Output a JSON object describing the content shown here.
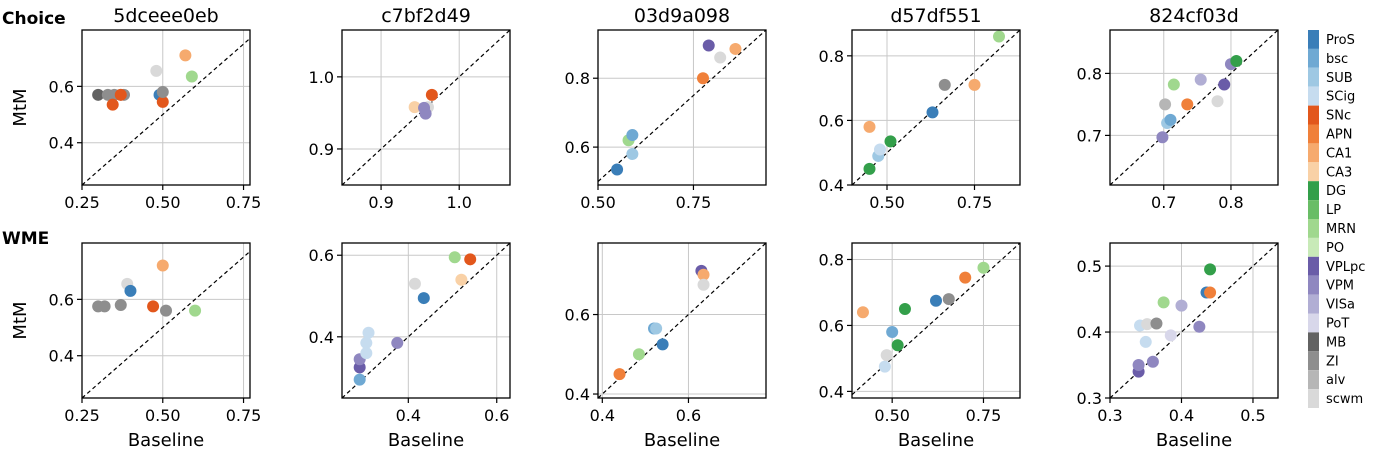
{
  "chart_data": {
    "type": "scatter",
    "x_axis_label": "Baseline",
    "y_axis_label": "MtM",
    "rows": [
      {
        "label": "Choice",
        "y_label": "MtM"
      },
      {
        "label": "WME",
        "y_label": "MtM"
      }
    ],
    "session_titles": [
      "5dceee0eb",
      "c7bf2d49",
      "03d9a098",
      "d57df551",
      "824cf03d"
    ],
    "legend": [
      {
        "name": "ProS",
        "color": "#3a7eb8"
      },
      {
        "name": "bsc",
        "color": "#6fa9d3"
      },
      {
        "name": "SUB",
        "color": "#9ec8e3"
      },
      {
        "name": "SCig",
        "color": "#c6dcef"
      },
      {
        "name": "SNc",
        "color": "#e2571c"
      },
      {
        "name": "APN",
        "color": "#f0803a"
      },
      {
        "name": "CA1",
        "color": "#f6aa6e"
      },
      {
        "name": "CA3",
        "color": "#f9d1a6"
      },
      {
        "name": "DG",
        "color": "#339f4a"
      },
      {
        "name": "LP",
        "color": "#69bd66"
      },
      {
        "name": "MRN",
        "color": "#a0d88e"
      },
      {
        "name": "PO",
        "color": "#c8eab8"
      },
      {
        "name": "VPLpc",
        "color": "#6a5ca8"
      },
      {
        "name": "VPM",
        "color": "#8f87c0"
      },
      {
        "name": "VISa",
        "color": "#b1aed4"
      },
      {
        "name": "PoT",
        "color": "#d8d7ea"
      },
      {
        "name": "MB",
        "color": "#626262"
      },
      {
        "name": "ZI",
        "color": "#8e8e8e"
      },
      {
        "name": "alv",
        "color": "#b6b6b6"
      },
      {
        "name": "scwm",
        "color": "#d9d9d9"
      }
    ],
    "panels": [
      {
        "row": 0,
        "col": 0,
        "xlim": [
          0.25,
          0.77
        ],
        "ylim": [
          0.25,
          0.8
        ],
        "xticks": [
          0.25,
          0.5,
          0.75
        ],
        "xticklabels": [
          "0.25",
          "0.50",
          "0.75"
        ],
        "yticks": [
          0.4,
          0.6
        ],
        "yticklabels": [
          "0.4",
          "0.6"
        ],
        "points": [
          {
            "x": 0.3,
            "y": 0.57,
            "color": "#626262"
          },
          {
            "x": 0.33,
            "y": 0.57,
            "color": "#8e8e8e"
          },
          {
            "x": 0.35,
            "y": 0.57,
            "color": "#8e8e8e"
          },
          {
            "x": 0.37,
            "y": 0.57,
            "color": "#8e8e8e"
          },
          {
            "x": 0.38,
            "y": 0.57,
            "color": "#8e8e8e"
          },
          {
            "x": 0.345,
            "y": 0.535,
            "color": "#e2571c"
          },
          {
            "x": 0.37,
            "y": 0.57,
            "color": "#e2571c"
          },
          {
            "x": 0.48,
            "y": 0.655,
            "color": "#d9d9d9"
          },
          {
            "x": 0.49,
            "y": 0.57,
            "color": "#3a7eb8"
          },
          {
            "x": 0.5,
            "y": 0.545,
            "color": "#e2571c"
          },
          {
            "x": 0.5,
            "y": 0.58,
            "color": "#8e8e8e"
          },
          {
            "x": 0.57,
            "y": 0.71,
            "color": "#f6aa6e"
          },
          {
            "x": 0.59,
            "y": 0.635,
            "color": "#a0d88e"
          }
        ]
      },
      {
        "row": 0,
        "col": 1,
        "xlim": [
          0.85,
          1.065
        ],
        "ylim": [
          0.85,
          1.065
        ],
        "xticks": [
          0.9,
          1.0
        ],
        "xticklabels": [
          "0.9",
          "1.0"
        ],
        "yticks": [
          0.9,
          1.0
        ],
        "yticklabels": [
          "0.9",
          "1.0"
        ],
        "points": [
          {
            "x": 0.943,
            "y": 0.958,
            "color": "#f9d1a6"
          },
          {
            "x": 0.965,
            "y": 0.975,
            "color": "#e2571c"
          },
          {
            "x": 0.96,
            "y": 0.958,
            "color": "#d9d9d9"
          },
          {
            "x": 0.955,
            "y": 0.957,
            "color": "#8f87c0"
          },
          {
            "x": 0.957,
            "y": 0.949,
            "color": "#8f87c0"
          }
        ]
      },
      {
        "row": 0,
        "col": 2,
        "xlim": [
          0.5,
          0.94
        ],
        "ylim": [
          0.49,
          0.94
        ],
        "xticks": [
          0.5,
          0.75
        ],
        "xticklabels": [
          "0.50",
          "0.75"
        ],
        "yticks": [
          0.6,
          0.8
        ],
        "yticklabels": [
          "0.6",
          "0.8"
        ],
        "points": [
          {
            "x": 0.55,
            "y": 0.535,
            "color": "#3a7eb8"
          },
          {
            "x": 0.58,
            "y": 0.62,
            "color": "#a0d88e"
          },
          {
            "x": 0.59,
            "y": 0.635,
            "color": "#6fa9d3"
          },
          {
            "x": 0.59,
            "y": 0.58,
            "color": "#9ec8e3"
          },
          {
            "x": 0.775,
            "y": 0.8,
            "color": "#f0803a"
          },
          {
            "x": 0.79,
            "y": 0.895,
            "color": "#6a5ca8"
          },
          {
            "x": 0.82,
            "y": 0.86,
            "color": "#d9d9d9"
          },
          {
            "x": 0.86,
            "y": 0.885,
            "color": "#f6aa6e"
          }
        ]
      },
      {
        "row": 0,
        "col": 3,
        "xlim": [
          0.4,
          0.88
        ],
        "ylim": [
          0.4,
          0.88
        ],
        "xticks": [
          0.5,
          0.75
        ],
        "xticklabels": [
          "0.50",
          "0.75"
        ],
        "yticks": [
          0.4,
          0.6,
          0.8
        ],
        "yticklabels": [
          "0.4",
          "0.6",
          "0.8"
        ],
        "points": [
          {
            "x": 0.45,
            "y": 0.45,
            "color": "#339f4a"
          },
          {
            "x": 0.45,
            "y": 0.58,
            "color": "#f6aa6e"
          },
          {
            "x": 0.475,
            "y": 0.49,
            "color": "#9ec8e3"
          },
          {
            "x": 0.48,
            "y": 0.51,
            "color": "#c6dcef"
          },
          {
            "x": 0.51,
            "y": 0.535,
            "color": "#339f4a"
          },
          {
            "x": 0.63,
            "y": 0.625,
            "color": "#3a7eb8"
          },
          {
            "x": 0.665,
            "y": 0.71,
            "color": "#8e8e8e"
          },
          {
            "x": 0.75,
            "y": 0.71,
            "color": "#f6aa6e"
          },
          {
            "x": 0.82,
            "y": 0.86,
            "color": "#a0d88e"
          }
        ]
      },
      {
        "row": 0,
        "col": 4,
        "xlim": [
          0.62,
          0.87
        ],
        "ylim": [
          0.62,
          0.87
        ],
        "xticks": [
          0.7,
          0.8
        ],
        "xticklabels": [
          "0.7",
          "0.8"
        ],
        "yticks": [
          0.7,
          0.8
        ],
        "yticklabels": [
          "0.7",
          "0.8"
        ],
        "points": [
          {
            "x": 0.698,
            "y": 0.697,
            "color": "#8f87c0"
          },
          {
            "x": 0.702,
            "y": 0.75,
            "color": "#b6b6b6"
          },
          {
            "x": 0.705,
            "y": 0.72,
            "color": "#9ec8e3"
          },
          {
            "x": 0.71,
            "y": 0.725,
            "color": "#6fa9d3"
          },
          {
            "x": 0.715,
            "y": 0.782,
            "color": "#a0d88e"
          },
          {
            "x": 0.735,
            "y": 0.75,
            "color": "#f0803a"
          },
          {
            "x": 0.755,
            "y": 0.79,
            "color": "#b1aed4"
          },
          {
            "x": 0.78,
            "y": 0.755,
            "color": "#d9d9d9"
          },
          {
            "x": 0.79,
            "y": 0.782,
            "color": "#6a5ca8"
          },
          {
            "x": 0.8,
            "y": 0.815,
            "color": "#8f87c0"
          },
          {
            "x": 0.808,
            "y": 0.82,
            "color": "#339f4a"
          }
        ]
      },
      {
        "row": 1,
        "col": 0,
        "xlim": [
          0.25,
          0.77
        ],
        "ylim": [
          0.25,
          0.8
        ],
        "xticks": [
          0.25,
          0.5,
          0.75
        ],
        "xticklabels": [
          "0.25",
          "0.50",
          "0.75"
        ],
        "yticks": [
          0.4,
          0.6
        ],
        "yticklabels": [
          "0.4",
          "0.6"
        ],
        "points": [
          {
            "x": 0.3,
            "y": 0.575,
            "color": "#8e8e8e"
          },
          {
            "x": 0.32,
            "y": 0.575,
            "color": "#8e8e8e"
          },
          {
            "x": 0.37,
            "y": 0.58,
            "color": "#8e8e8e"
          },
          {
            "x": 0.39,
            "y": 0.655,
            "color": "#d9d9d9"
          },
          {
            "x": 0.4,
            "y": 0.63,
            "color": "#3a7eb8"
          },
          {
            "x": 0.47,
            "y": 0.575,
            "color": "#e2571c"
          },
          {
            "x": 0.5,
            "y": 0.72,
            "color": "#f6aa6e"
          },
          {
            "x": 0.51,
            "y": 0.56,
            "color": "#8e8e8e"
          },
          {
            "x": 0.6,
            "y": 0.56,
            "color": "#a0d88e"
          }
        ]
      },
      {
        "row": 1,
        "col": 1,
        "xlim": [
          0.25,
          0.63
        ],
        "ylim": [
          0.25,
          0.63
        ],
        "xticks": [
          0.4,
          0.6
        ],
        "xticklabels": [
          "0.4",
          "0.6"
        ],
        "yticks": [
          0.4,
          0.6
        ],
        "yticklabels": [
          "0.4",
          "0.6"
        ],
        "points": [
          {
            "x": 0.29,
            "y": 0.295,
            "color": "#6fa9d3"
          },
          {
            "x": 0.29,
            "y": 0.325,
            "color": "#6a5ca8"
          },
          {
            "x": 0.29,
            "y": 0.345,
            "color": "#8f87c0"
          },
          {
            "x": 0.305,
            "y": 0.36,
            "color": "#c6dcef"
          },
          {
            "x": 0.305,
            "y": 0.385,
            "color": "#c6dcef"
          },
          {
            "x": 0.31,
            "y": 0.41,
            "color": "#c6dcef"
          },
          {
            "x": 0.375,
            "y": 0.385,
            "color": "#8f87c0"
          },
          {
            "x": 0.415,
            "y": 0.53,
            "color": "#d9d9d9"
          },
          {
            "x": 0.435,
            "y": 0.495,
            "color": "#3a7eb8"
          },
          {
            "x": 0.505,
            "y": 0.595,
            "color": "#a0d88e"
          },
          {
            "x": 0.52,
            "y": 0.54,
            "color": "#f9d1a6"
          },
          {
            "x": 0.54,
            "y": 0.59,
            "color": "#e2571c"
          }
        ]
      },
      {
        "row": 1,
        "col": 2,
        "xlim": [
          0.39,
          0.78
        ],
        "ylim": [
          0.39,
          0.78
        ],
        "xticks": [
          0.4,
          0.6
        ],
        "xticklabels": [
          "0.4",
          "0.6"
        ],
        "yticks": [
          0.4,
          0.6
        ],
        "yticklabels": [
          "0.4",
          "0.6"
        ],
        "points": [
          {
            "x": 0.44,
            "y": 0.45,
            "color": "#f0803a"
          },
          {
            "x": 0.485,
            "y": 0.5,
            "color": "#a0d88e"
          },
          {
            "x": 0.52,
            "y": 0.565,
            "color": "#6fa9d3"
          },
          {
            "x": 0.525,
            "y": 0.565,
            "color": "#9ec8e3"
          },
          {
            "x": 0.54,
            "y": 0.525,
            "color": "#3a7eb8"
          },
          {
            "x": 0.63,
            "y": 0.71,
            "color": "#6a5ca8"
          },
          {
            "x": 0.635,
            "y": 0.7,
            "color": "#f6aa6e"
          },
          {
            "x": 0.635,
            "y": 0.675,
            "color": "#d9d9d9"
          }
        ]
      },
      {
        "row": 1,
        "col": 3,
        "xlim": [
          0.39,
          0.85
        ],
        "ylim": [
          0.38,
          0.85
        ],
        "xticks": [
          0.5,
          0.75
        ],
        "xticklabels": [
          "0.50",
          "0.75"
        ],
        "yticks": [
          0.4,
          0.6,
          0.8
        ],
        "yticklabels": [
          "0.4",
          "0.6",
          "0.8"
        ],
        "points": [
          {
            "x": 0.42,
            "y": 0.64,
            "color": "#f6aa6e"
          },
          {
            "x": 0.48,
            "y": 0.475,
            "color": "#c6dcef"
          },
          {
            "x": 0.485,
            "y": 0.51,
            "color": "#d9d9d9"
          },
          {
            "x": 0.5,
            "y": 0.58,
            "color": "#6fa9d3"
          },
          {
            "x": 0.515,
            "y": 0.54,
            "color": "#339f4a"
          },
          {
            "x": 0.535,
            "y": 0.65,
            "color": "#339f4a"
          },
          {
            "x": 0.62,
            "y": 0.675,
            "color": "#3a7eb8"
          },
          {
            "x": 0.655,
            "y": 0.68,
            "color": "#8e8e8e"
          },
          {
            "x": 0.7,
            "y": 0.745,
            "color": "#f0803a"
          },
          {
            "x": 0.75,
            "y": 0.775,
            "color": "#a0d88e"
          }
        ]
      },
      {
        "row": 1,
        "col": 4,
        "xlim": [
          0.3,
          0.535
        ],
        "ylim": [
          0.3,
          0.535
        ],
        "xticks": [
          0.3,
          0.4,
          0.5
        ],
        "xticklabels": [
          "0.3",
          "0.4",
          "0.5"
        ],
        "yticks": [
          0.3,
          0.4,
          0.5
        ],
        "yticklabels": [
          "0.3",
          "0.4",
          "0.5"
        ],
        "points": [
          {
            "x": 0.34,
            "y": 0.34,
            "color": "#6a5ca8"
          },
          {
            "x": 0.34,
            "y": 0.35,
            "color": "#8f87c0"
          },
          {
            "x": 0.342,
            "y": 0.41,
            "color": "#c6dcef"
          },
          {
            "x": 0.35,
            "y": 0.385,
            "color": "#c6dcef"
          },
          {
            "x": 0.352,
            "y": 0.412,
            "color": "#d9d9d9"
          },
          {
            "x": 0.36,
            "y": 0.355,
            "color": "#8f87c0"
          },
          {
            "x": 0.365,
            "y": 0.413,
            "color": "#8e8e8e"
          },
          {
            "x": 0.375,
            "y": 0.445,
            "color": "#a0d88e"
          },
          {
            "x": 0.385,
            "y": 0.395,
            "color": "#d8d7ea"
          },
          {
            "x": 0.4,
            "y": 0.44,
            "color": "#b1aed4"
          },
          {
            "x": 0.425,
            "y": 0.408,
            "color": "#8f87c0"
          },
          {
            "x": 0.435,
            "y": 0.46,
            "color": "#3a7eb8"
          },
          {
            "x": 0.44,
            "y": 0.46,
            "color": "#f0803a"
          },
          {
            "x": 0.44,
            "y": 0.495,
            "color": "#339f4a"
          }
        ]
      }
    ]
  }
}
